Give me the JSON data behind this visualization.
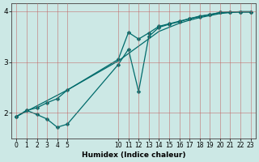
{
  "xlabel": "Humidex (Indice chaleur)",
  "bg_color": "#cce8e5",
  "line_color": "#006b6b",
  "grid_color": "#c8808080",
  "line1_x": [
    0,
    1,
    2,
    3,
    4,
    5,
    10,
    11,
    12,
    13,
    14,
    15,
    16,
    17,
    18,
    19,
    20,
    21,
    22,
    23
  ],
  "line1_y": [
    1.93,
    2.05,
    2.1,
    2.2,
    2.28,
    2.45,
    3.05,
    3.58,
    3.45,
    3.57,
    3.7,
    3.75,
    3.8,
    3.85,
    3.9,
    3.93,
    3.97,
    3.98,
    3.98,
    3.98
  ],
  "line2_x": [
    0,
    1,
    2,
    3,
    4,
    5,
    10,
    11,
    12,
    13,
    14,
    15,
    16,
    17,
    18,
    19,
    20,
    21,
    22,
    23
  ],
  "line2_y": [
    1.93,
    2.05,
    1.97,
    1.88,
    1.72,
    1.78,
    2.95,
    3.25,
    2.42,
    3.5,
    3.68,
    3.74,
    3.79,
    3.85,
    3.89,
    3.93,
    3.97,
    3.98,
    3.98,
    3.98
  ],
  "line3_x": [
    0,
    5,
    10,
    14,
    15,
    16,
    17,
    18,
    19,
    20,
    21,
    22,
    23
  ],
  "line3_y": [
    1.93,
    2.45,
    3.02,
    3.6,
    3.68,
    3.76,
    3.82,
    3.87,
    3.91,
    3.95,
    3.97,
    3.99,
    3.99
  ],
  "xlim": [
    -0.5,
    23.5
  ],
  "ylim": [
    1.5,
    4.15
  ],
  "xticks": [
    0,
    1,
    2,
    3,
    4,
    5,
    10,
    11,
    12,
    13,
    14,
    15,
    16,
    17,
    18,
    19,
    20,
    21,
    22,
    23
  ],
  "yticks": [
    2,
    3,
    4
  ],
  "markersize": 2.5,
  "linewidth": 0.9
}
